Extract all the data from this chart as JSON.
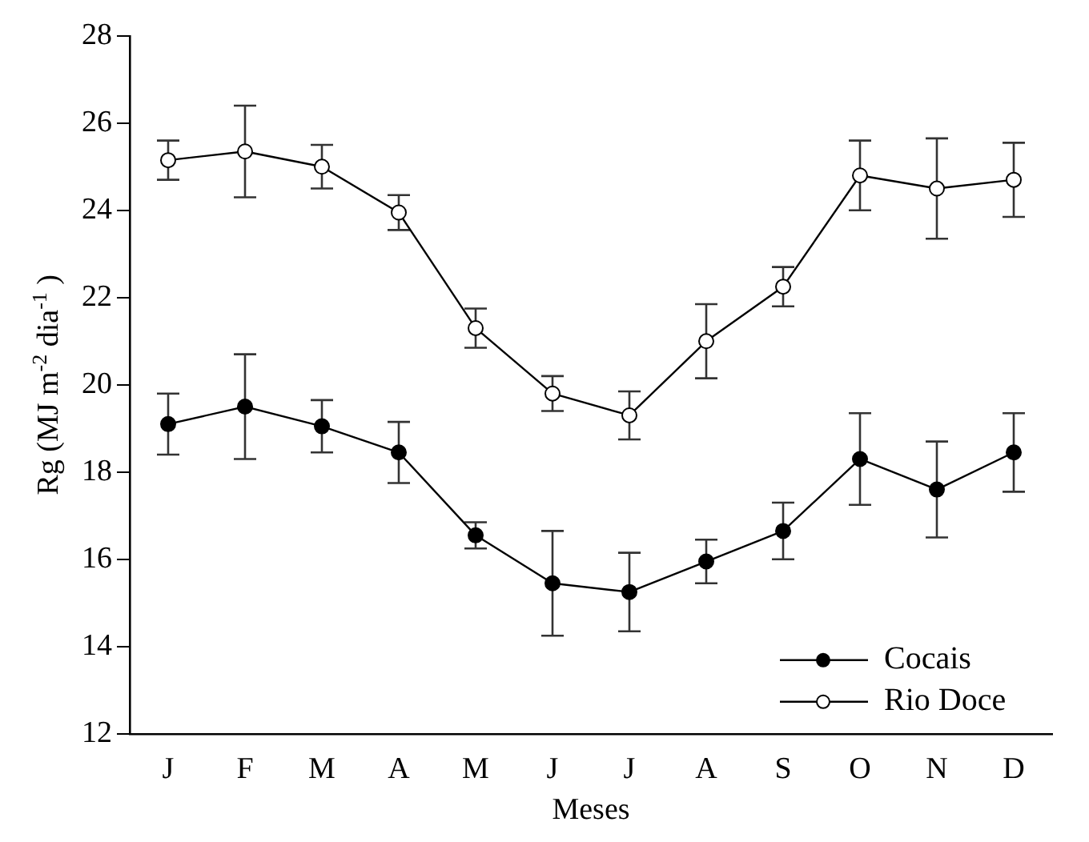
{
  "chart_data": {
    "type": "line",
    "xlabel": "Meses",
    "ylabel": "Rg (MJ m$^{-2}$ dia$^{-1}$ )",
    "categories": [
      "J",
      "F",
      "M",
      "A",
      "M",
      "J",
      "J",
      "A",
      "S",
      "O",
      "N",
      "D"
    ],
    "series": [
      {
        "name": "Cocais",
        "color": "#000000",
        "marker": "circle",
        "values": [
          19.1,
          19.5,
          19.05,
          18.45,
          16.55,
          15.45,
          15.25,
          15.95,
          16.65,
          18.3,
          17.6,
          18.45
        ],
        "errors": [
          0.7,
          1.2,
          0.6,
          0.7,
          0.3,
          1.2,
          0.9,
          0.5,
          0.65,
          1.05,
          1.1,
          0.9
        ]
      },
      {
        "name": "Rio Doce",
        "color": "#ffffff",
        "marker": "circle",
        "values": [
          25.15,
          25.35,
          25.0,
          23.95,
          21.3,
          19.8,
          19.3,
          21.0,
          22.25,
          24.8,
          24.5,
          24.7
        ],
        "errors": [
          0.45,
          1.05,
          0.5,
          0.4,
          0.45,
          0.4,
          0.55,
          0.85,
          0.45,
          0.8,
          1.15,
          0.85
        ]
      }
    ],
    "ylim": [
      12,
      28
    ],
    "yticks": [
      12,
      14,
      16,
      18,
      20,
      22,
      24,
      26,
      28
    ],
    "grid": false,
    "legend": "bottom right"
  }
}
